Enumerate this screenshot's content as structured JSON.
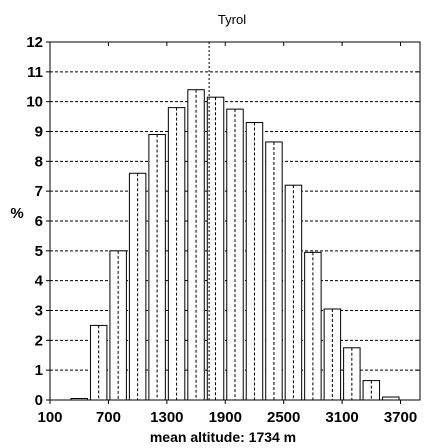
{
  "chart_data": {
    "type": "bar",
    "title": "Tyrol",
    "ylabel": "%",
    "xlabel": "mean altitude: 1734 m",
    "xlim": [
      100,
      3900
    ],
    "ylim": [
      0,
      12
    ],
    "bin_width": 200,
    "x_ticks": [
      100,
      700,
      1300,
      1900,
      2500,
      3100,
      3700
    ],
    "x_tick_labels": [
      "100",
      "700",
      "1300",
      "1900",
      "2500",
      "3100",
      "3700"
    ],
    "y_ticks": [
      0,
      1,
      2,
      3,
      4,
      5,
      6,
      7,
      8,
      9,
      10,
      11,
      12
    ],
    "y_tick_labels": [
      "0",
      "1",
      "2",
      "3",
      "4",
      "5",
      "6",
      "7",
      "8",
      "9",
      "10",
      "11",
      "12"
    ],
    "mean": 1734,
    "grid": "horizontal dashed",
    "bin_starts": [
      100,
      300,
      500,
      700,
      900,
      1100,
      1300,
      1500,
      1700,
      1900,
      2100,
      2300,
      2500,
      2700,
      2900,
      3100,
      3300,
      3500,
      3700
    ],
    "values": [
      0,
      0.05,
      2.5,
      5.0,
      7.6,
      8.9,
      9.8,
      10.4,
      10.15,
      9.75,
      9.3,
      8.65,
      7.2,
      4.95,
      3.05,
      1.75,
      0.65,
      0.1,
      0
    ]
  }
}
